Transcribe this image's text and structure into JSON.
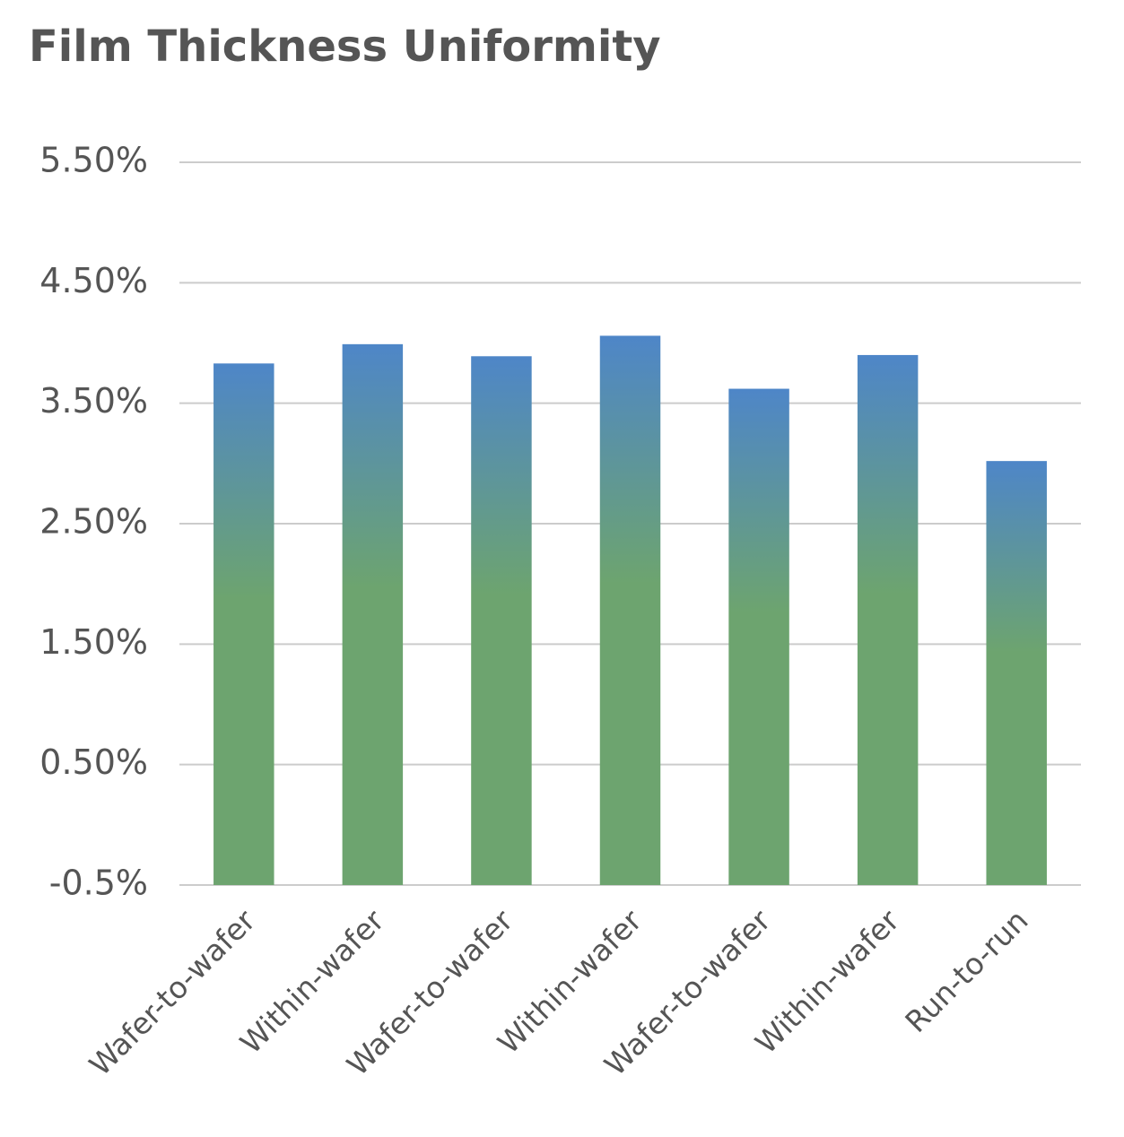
{
  "chart_data": {
    "type": "bar",
    "title": "Film Thickness Uniformity",
    "categories": [
      "Wafer-to-wafer",
      "Within-wafer",
      "Wafer-to-wafer",
      "Within-wafer",
      "Wafer-to-wafer",
      "Within-wafer",
      "Run-to-run"
    ],
    "values": [
      3.83,
      3.99,
      3.89,
      4.06,
      3.62,
      3.9,
      3.02
    ],
    "color": {
      "top": "#4e86c8",
      "bottom": "#6da46f"
    },
    "ylim": [
      -0.5,
      5.5
    ],
    "yticks": [
      {
        "value": -0.5,
        "label": "-0.5%"
      },
      {
        "value": 0.5,
        "label": "0.50%"
      },
      {
        "value": 1.5,
        "label": "1.50%"
      },
      {
        "value": 2.5,
        "label": "2.50%"
      },
      {
        "value": 3.5,
        "label": "3.50%"
      },
      {
        "value": 4.5,
        "label": "4.50%"
      },
      {
        "value": 5.5,
        "label": "5.50%"
      }
    ],
    "grid": true
  }
}
